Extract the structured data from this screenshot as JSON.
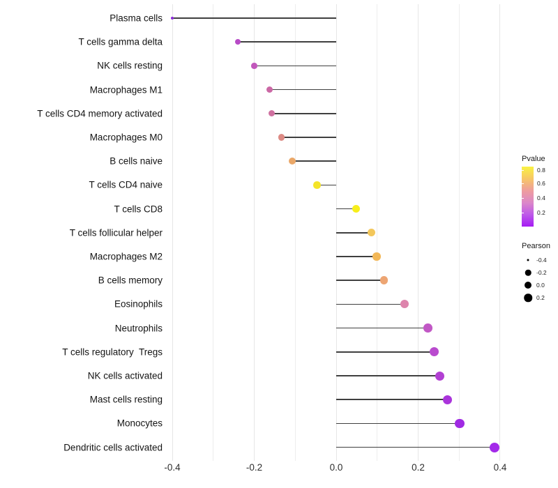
{
  "chart_data": {
    "type": "lollipop",
    "title": "",
    "xlabel": "",
    "ylabel": "",
    "xlim": [
      -0.412,
      0.446
    ],
    "baseline": 0.0,
    "grid": "vertical-only",
    "gridline_values": [
      -0.4,
      -0.3,
      -0.2,
      -0.1,
      0.0,
      0.1,
      0.2,
      0.3,
      0.4
    ],
    "major_gridline_values": [
      -0.4,
      -0.2,
      0.0,
      0.2,
      0.4
    ],
    "x_ticks": [
      {
        "value": -0.4,
        "label": "-0.4"
      },
      {
        "value": -0.2,
        "label": "-0.2"
      },
      {
        "value": 0.0,
        "label": "0.0"
      },
      {
        "value": 0.2,
        "label": "0.2"
      },
      {
        "value": 0.4,
        "label": "0.4"
      }
    ],
    "points": [
      {
        "label": "Plasma cells",
        "pearson": -0.4,
        "color": "#8c2bd9",
        "diameter": 4
      },
      {
        "label": "T cells gamma delta",
        "pearson": -0.24,
        "color": "#b74ac6",
        "diameter": 8
      },
      {
        "label": "NK cells resting",
        "pearson": -0.2,
        "color": "#c157bb",
        "diameter": 8.5
      },
      {
        "label": "Macrophages M1",
        "pearson": -0.163,
        "color": "#cb68a5",
        "diameter": 9
      },
      {
        "label": "T cells CD4 memory activated",
        "pearson": -0.157,
        "color": "#cf71a0",
        "diameter": 9
      },
      {
        "label": "Macrophages M0",
        "pearson": -0.134,
        "color": "#dd8b85",
        "diameter": 9.5
      },
      {
        "label": "B cells naive",
        "pearson": -0.107,
        "color": "#eaa768",
        "diameter": 10
      },
      {
        "label": "T cells CD4 naive",
        "pearson": -0.047,
        "color": "#f4e428",
        "diameter": 10.5
      },
      {
        "label": "T cells CD8",
        "pearson": 0.048,
        "color": "#f7ee1b",
        "diameter": 11
      },
      {
        "label": "T cells follicular helper",
        "pearson": 0.086,
        "color": "#f3c75b",
        "diameter": 11
      },
      {
        "label": "Macrophages M2",
        "pearson": 0.099,
        "color": "#f2b757",
        "diameter": 11.5
      },
      {
        "label": "B cells memory",
        "pearson": 0.117,
        "color": "#eda573",
        "diameter": 11.5
      },
      {
        "label": "Eosinophils",
        "pearson": 0.167,
        "color": "#dd84ac",
        "diameter": 12
      },
      {
        "label": "Neutrophils",
        "pearson": 0.224,
        "color": "#c158c5",
        "diameter": 12.5
      },
      {
        "label": "T cells regulatory  Tregs",
        "pearson": 0.24,
        "color": "#b94bce",
        "diameter": 13
      },
      {
        "label": "NK cells activated",
        "pearson": 0.252,
        "color": "#b240d3",
        "diameter": 13
      },
      {
        "label": "Mast cells resting",
        "pearson": 0.271,
        "color": "#aa34db",
        "diameter": 13
      },
      {
        "label": "Monocytes",
        "pearson": 0.301,
        "color": "#a02ae3",
        "diameter": 13.5
      },
      {
        "label": "Dendritic cells activated",
        "pearson": 0.386,
        "color": "#a32ae9",
        "diameter": 14
      }
    ],
    "legend_pvalue": {
      "title": "Pvalue",
      "ticks": [
        {
          "label": "0.8",
          "pos_pct": 6
        },
        {
          "label": "0.6",
          "pos_pct": 28
        },
        {
          "label": "0.4",
          "pos_pct": 52
        },
        {
          "label": "0.2",
          "pos_pct": 77
        }
      ],
      "gradient_stops": [
        "#f9f243",
        "#f7c766",
        "#ee9d9e",
        "#dc88c8",
        "#bd59e9",
        "#a51bf3"
      ]
    },
    "legend_pearson": {
      "title": "Pearson",
      "dot_color": "#000000",
      "items": [
        {
          "label": "-0.4",
          "diameter": 3
        },
        {
          "label": "-0.2",
          "diameter": 8.5
        },
        {
          "label": "0.0",
          "diameter": 10
        },
        {
          "label": "0.2",
          "diameter": 11.5
        }
      ]
    },
    "style": {
      "line_color": "#3f3f3f",
      "gridline_color": "#ededed",
      "background": "#ffffff"
    }
  }
}
